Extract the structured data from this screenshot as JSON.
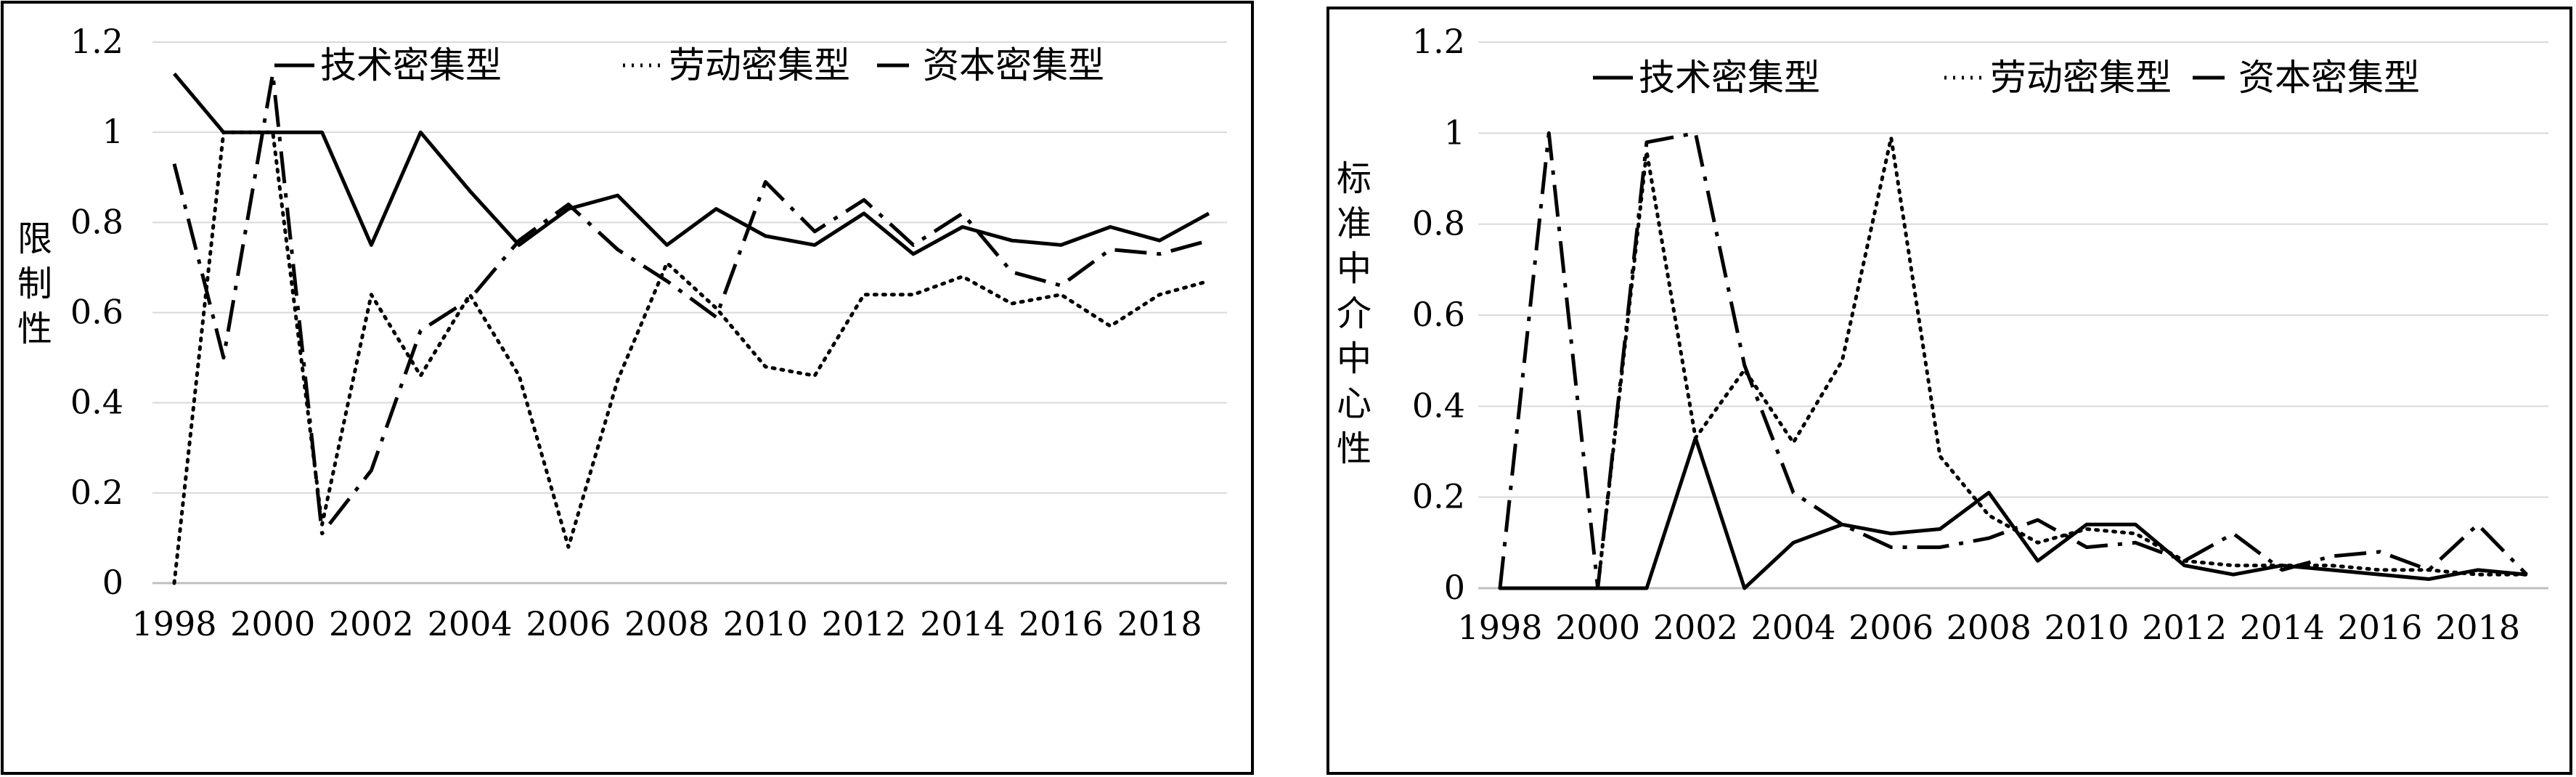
{
  "chart_data": [
    {
      "type": "line",
      "title": "",
      "xlabel": "",
      "ylabel": "限制性",
      "ylim": [
        0,
        1.2
      ],
      "yticks": [
        "0",
        "0.2",
        "0.4",
        "0.6",
        "0.8",
        "1",
        "1.2"
      ],
      "xticks": [
        "1998",
        "2000",
        "2002",
        "2004",
        "2006",
        "2008",
        "2010",
        "2012",
        "2014",
        "2016",
        "2018"
      ],
      "x": [
        1998,
        1999,
        2000,
        2001,
        2002,
        2003,
        2004,
        2005,
        2006,
        2007,
        2008,
        2009,
        2010,
        2011,
        2012,
        2013,
        2014,
        2015,
        2016,
        2017,
        2018,
        2019
      ],
      "grid": true,
      "legend": "top",
      "series": [
        {
          "name": "技术密集型",
          "style": "solid",
          "values": [
            1.13,
            1.0,
            1.0,
            1.0,
            0.75,
            1.0,
            0.87,
            0.75,
            0.83,
            0.86,
            0.75,
            0.83,
            0.77,
            0.75,
            0.82,
            0.73,
            0.79,
            0.76,
            0.75,
            0.79,
            0.76,
            0.82
          ]
        },
        {
          "name": "劳动密集型",
          "style": "dotted",
          "values": [
            0.0,
            1.0,
            1.0,
            0.13,
            0.64,
            0.46,
            0.64,
            0.46,
            0.08,
            0.45,
            0.71,
            0.61,
            0.48,
            0.46,
            0.64,
            0.64,
            0.68,
            0.62,
            0.64,
            0.57,
            0.64,
            0.67
          ]
        },
        {
          "name": "资本密集型",
          "style": "dashdot",
          "values": [
            0.93,
            0.5,
            1.13,
            0.11,
            0.25,
            0.56,
            0.63,
            0.76,
            0.84,
            0.74,
            0.67,
            0.59,
            0.89,
            0.78,
            0.85,
            0.75,
            0.82,
            0.69,
            0.66,
            0.74,
            0.73,
            0.76
          ]
        }
      ]
    },
    {
      "type": "line",
      "title": "",
      "xlabel": "",
      "ylabel": "标准中介中心性",
      "ylim": [
        0,
        1.2
      ],
      "yticks": [
        "0",
        "0.2",
        "0.4",
        "0.6",
        "0.8",
        "1",
        "1.2"
      ],
      "xticks": [
        "1998",
        "2000",
        "2002",
        "2004",
        "2006",
        "2008",
        "2010",
        "2012",
        "2014",
        "2016",
        "2018"
      ],
      "x": [
        1998,
        1999,
        2000,
        2001,
        2002,
        2003,
        2004,
        2005,
        2006,
        2007,
        2008,
        2009,
        2010,
        2011,
        2012,
        2013,
        2014,
        2015,
        2016,
        2017,
        2018,
        2019
      ],
      "grid": true,
      "legend": "top",
      "series": [
        {
          "name": "技术密集型",
          "style": "solid",
          "values": [
            0.0,
            0.0,
            0.0,
            0.0,
            0.33,
            0.0,
            0.1,
            0.14,
            0.12,
            0.13,
            0.21,
            0.06,
            0.14,
            0.14,
            0.05,
            0.03,
            0.05,
            0.04,
            0.03,
            0.02,
            0.04,
            0.03
          ]
        },
        {
          "name": "劳动密集型",
          "style": "dotted",
          "values": [
            0.0,
            0.0,
            0.0,
            0.96,
            0.33,
            0.48,
            0.32,
            0.5,
            0.99,
            0.29,
            0.16,
            0.1,
            0.13,
            0.12,
            0.06,
            0.05,
            0.05,
            0.05,
            0.04,
            0.04,
            0.03,
            0.03
          ]
        },
        {
          "name": "资本密集型",
          "style": "dashdot",
          "values": [
            0.0,
            1.0,
            0.0,
            0.98,
            1.0,
            0.49,
            0.21,
            0.14,
            0.09,
            0.09,
            0.11,
            0.15,
            0.09,
            0.1,
            0.06,
            0.12,
            0.04,
            0.07,
            0.08,
            0.04,
            0.14,
            0.03
          ]
        }
      ]
    }
  ]
}
